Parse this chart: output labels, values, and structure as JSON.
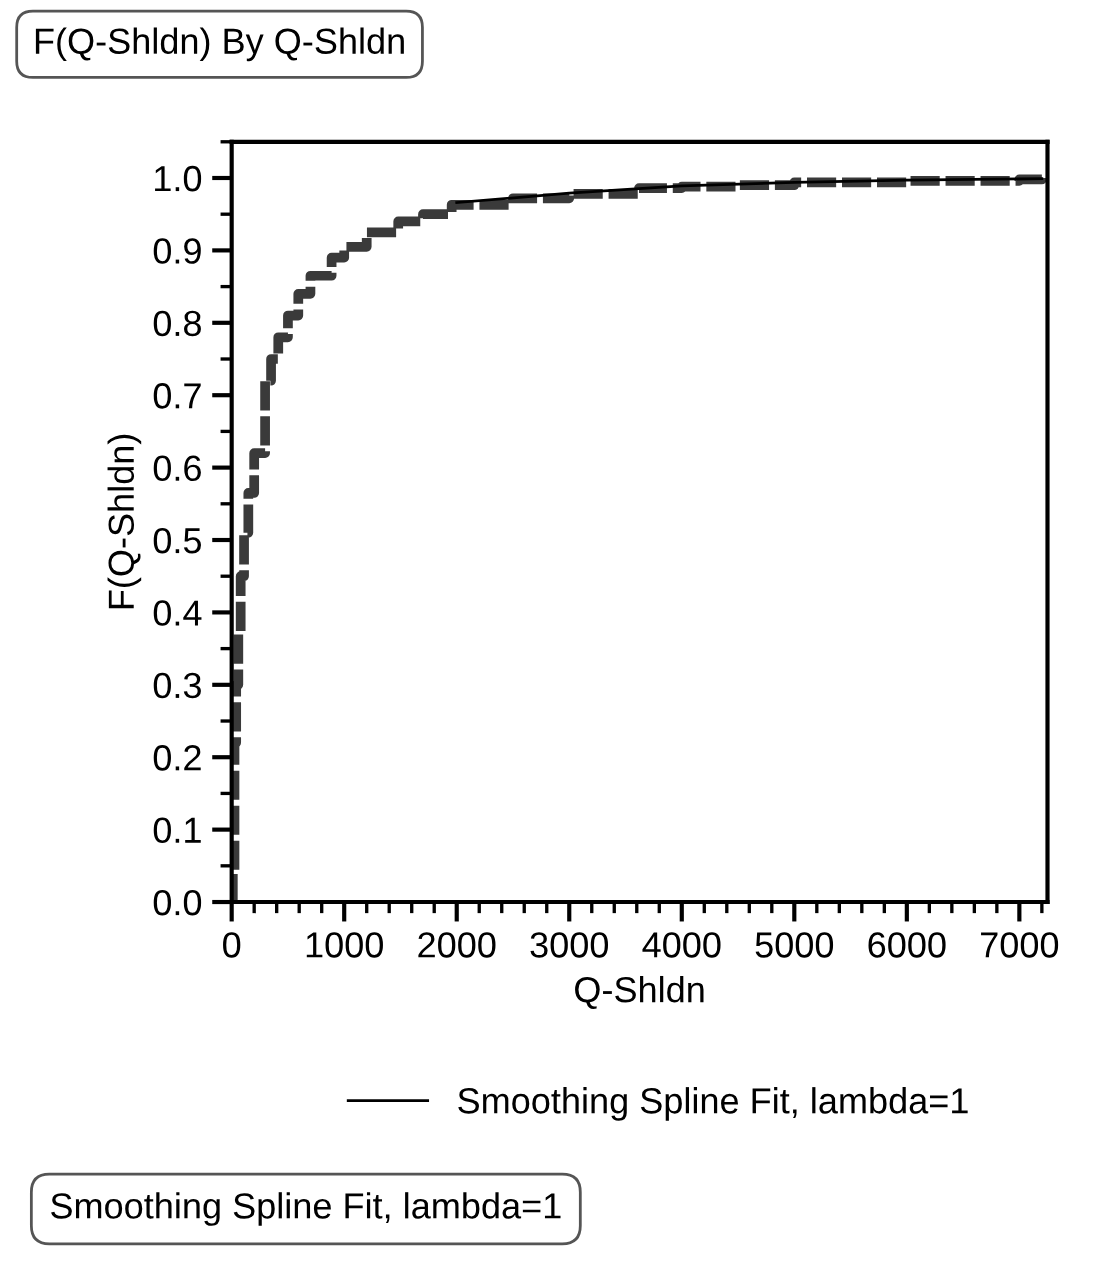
{
  "chart_data": {
    "type": "step",
    "title": "F(Q-Shldn) By Q-Shldn",
    "xlabel": "Q-Shldn",
    "ylabel": "F(Q-Shldn)",
    "xlim": [
      0,
      7250
    ],
    "xticks": [
      0,
      1000,
      2000,
      3000,
      4000,
      5000,
      6000,
      7000
    ],
    "ylim": [
      0,
      1.05
    ],
    "yticks": [
      {
        "value": 0,
        "label": "0.0"
      },
      0.1,
      0.2,
      0.3,
      0.4,
      0.5,
      0.6,
      0.7,
      0.8,
      0.9,
      {
        "value": 1,
        "label": "1.0"
      }
    ],
    "grid": false,
    "legend": "bottom",
    "series": [
      {
        "color": "#3a3a3a",
        "line_style": "dashed",
        "x": [
          0,
          10,
          25,
          40,
          59,
          80,
          110,
          148,
          200,
          297,
          350,
          414,
          500,
          592,
          700,
          888,
          1000,
          1200,
          1480,
          1700,
          1955,
          2500,
          3000,
          3620,
          4000,
          4500,
          5000,
          6000,
          7000,
          7200
        ],
        "values": [
          0,
          0.04,
          0.22,
          0.3,
          0.37,
          0.45,
          0.51,
          0.565,
          0.62,
          0.72,
          0.75,
          0.78,
          0.81,
          0.84,
          0.865,
          0.89,
          0.905,
          0.925,
          0.94,
          0.95,
          0.963,
          0.972,
          0.978,
          0.986,
          0.988,
          0.99,
          0.994,
          0.996,
          0.998,
          1.0
        ]
      },
      {
        "type": "line",
        "name": "Smoothing Spline Fit, lambda=1",
        "color": "#000000",
        "x": [
          2000,
          3000,
          4000,
          5000,
          6000,
          7200
        ],
        "values": [
          0.966,
          0.979,
          0.989,
          0.994,
          0.997,
          0.999
        ]
      }
    ],
    "annotations": [
      "Smoothing Spline Fit, lambda=1"
    ]
  }
}
